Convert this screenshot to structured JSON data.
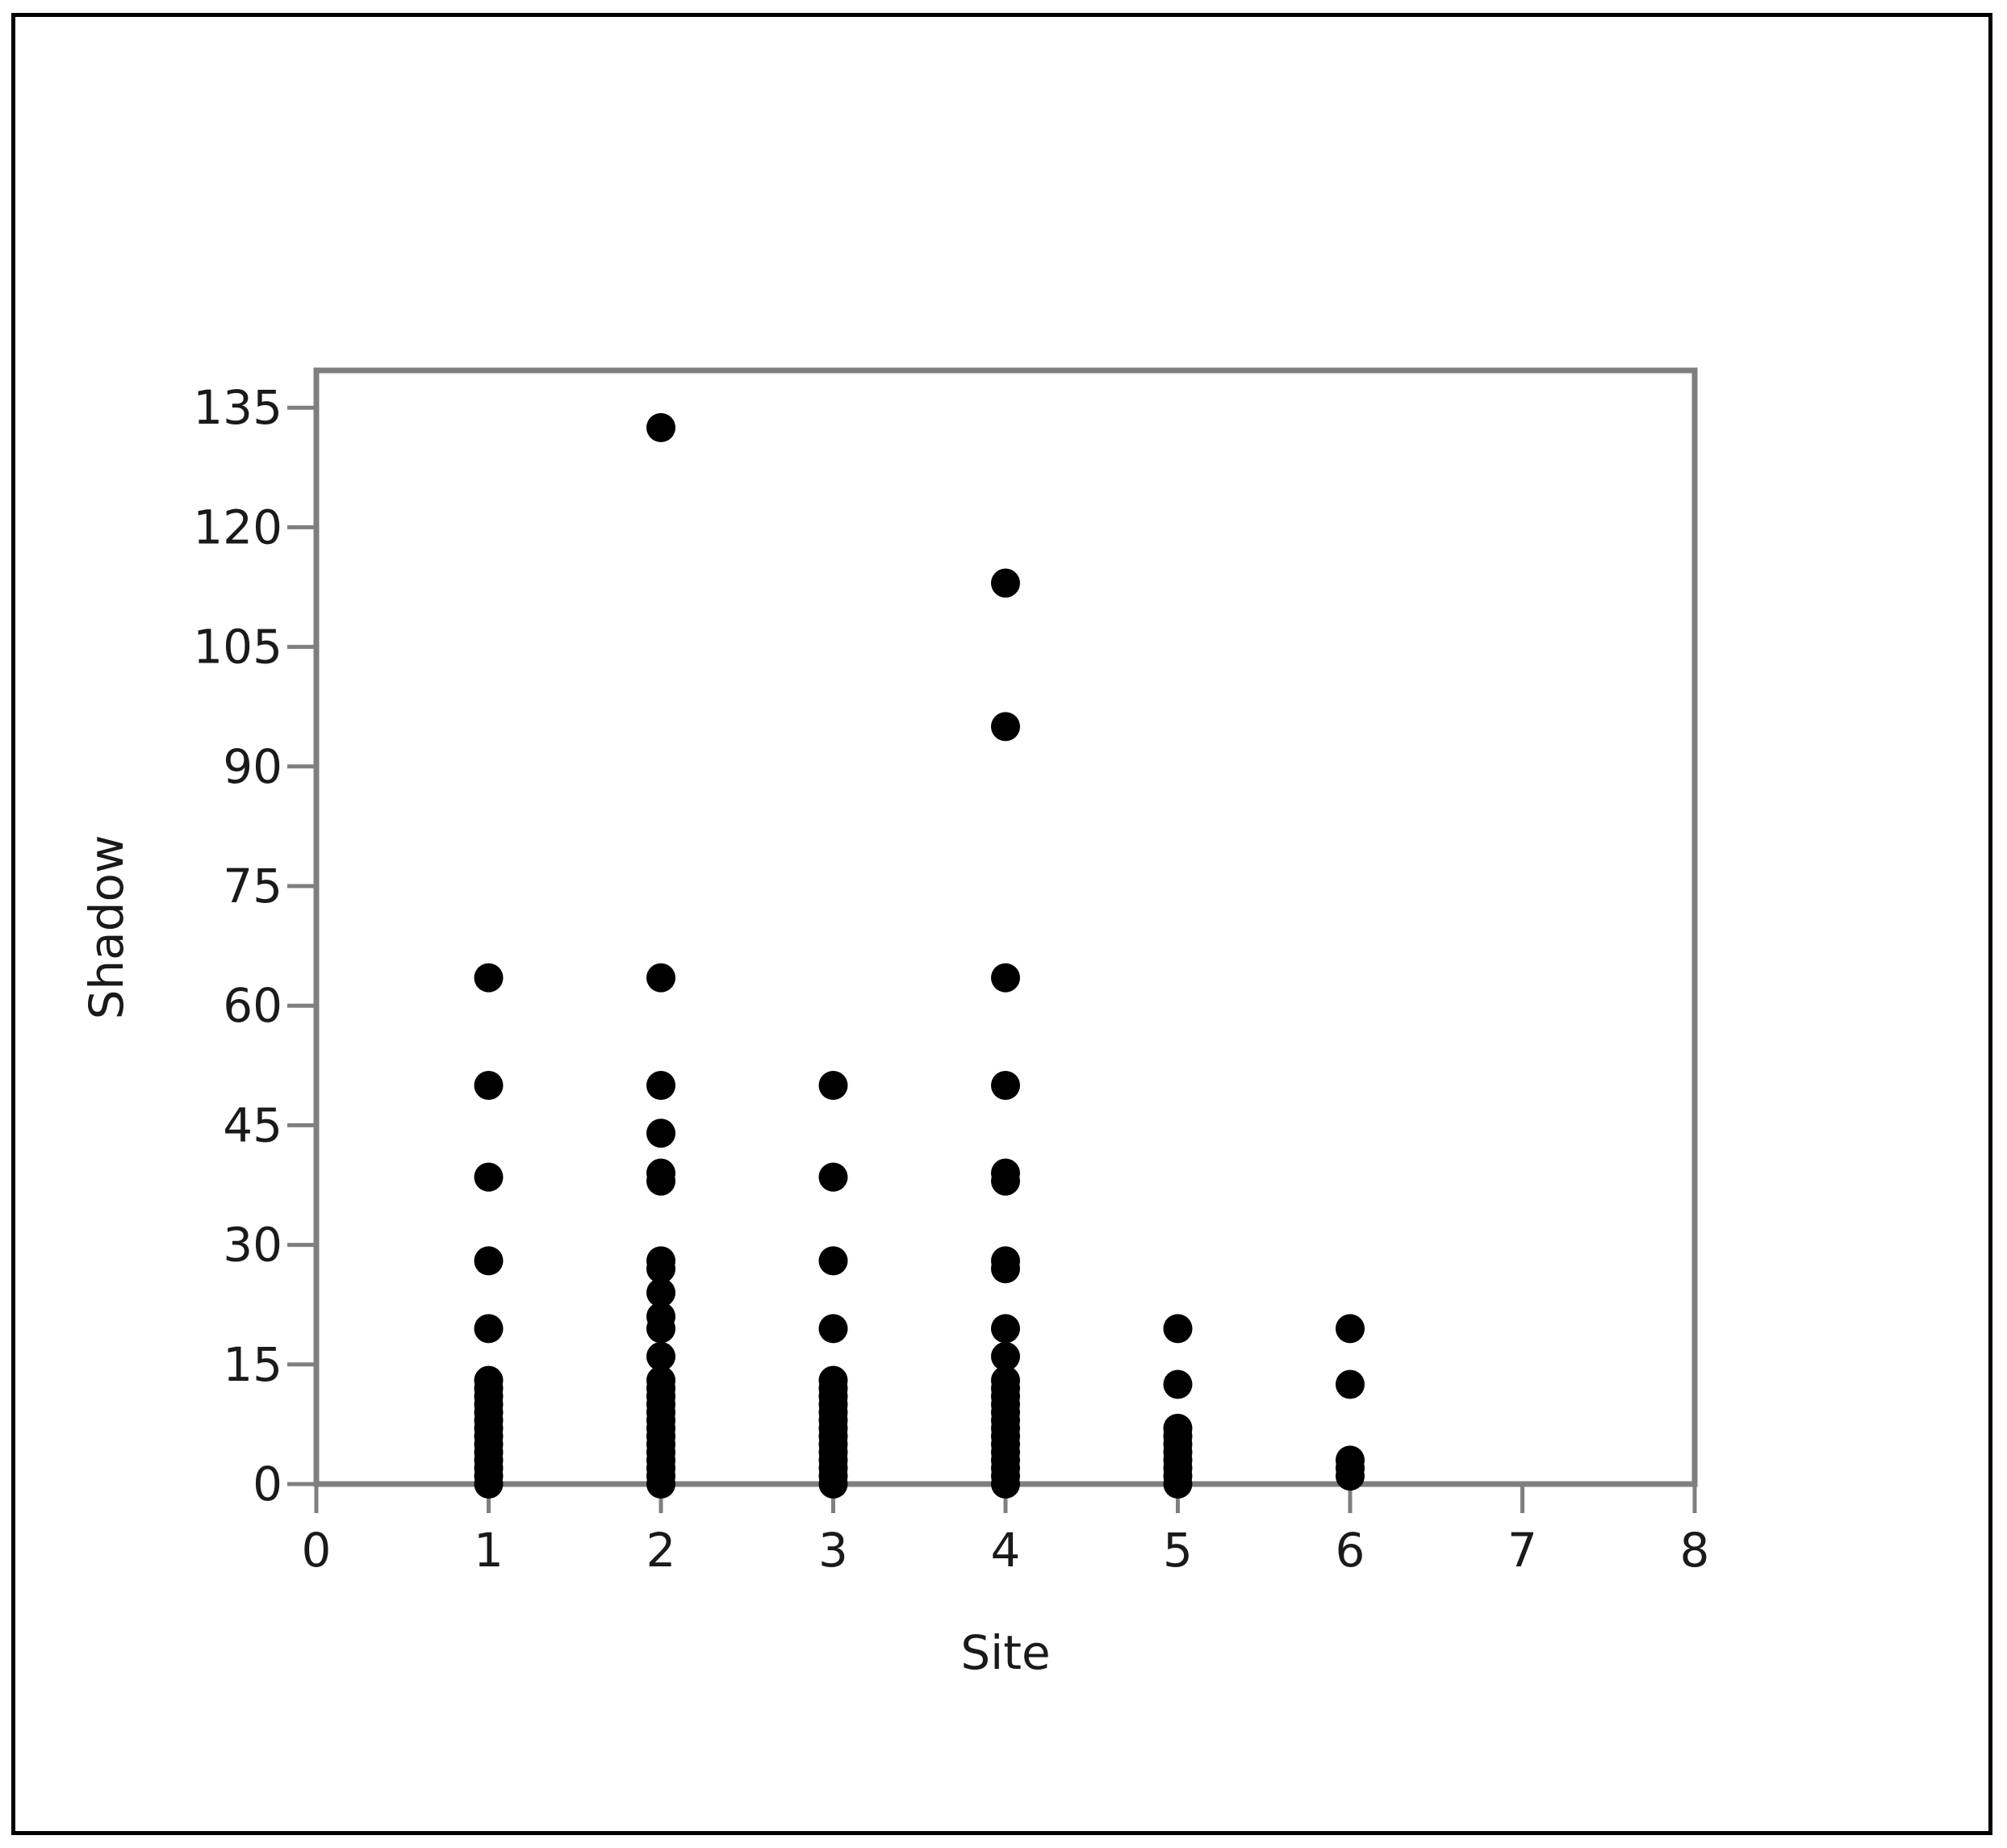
{
  "chart_data": {
    "type": "scatter",
    "title": "",
    "xlabel": "Site",
    "ylabel": "Shadow",
    "xlim": [
      0,
      8
    ],
    "ylim": [
      0,
      140
    ],
    "x_ticks": [
      0,
      1,
      2,
      3,
      4,
      5,
      6,
      7,
      8
    ],
    "y_ticks": [
      0,
      15,
      30,
      45,
      60,
      75,
      90,
      105,
      120,
      135
    ],
    "grid": false,
    "legend": "none",
    "marker_color": "#000000",
    "axis_color": "#7f7f7f",
    "series": [
      {
        "points": [
          [
            1,
            0
          ],
          [
            1,
            1
          ],
          [
            1,
            2
          ],
          [
            1,
            3
          ],
          [
            1,
            4
          ],
          [
            1,
            5
          ],
          [
            1,
            6
          ],
          [
            1,
            7
          ],
          [
            1,
            8
          ],
          [
            1,
            9
          ],
          [
            1,
            10
          ],
          [
            1,
            11
          ],
          [
            1,
            12
          ],
          [
            1,
            13
          ],
          [
            1,
            19.5
          ],
          [
            1,
            28
          ],
          [
            1,
            38.5
          ],
          [
            1,
            50
          ],
          [
            1,
            63.5
          ],
          [
            2,
            0
          ],
          [
            2,
            1
          ],
          [
            2,
            2
          ],
          [
            2,
            3
          ],
          [
            2,
            4
          ],
          [
            2,
            5
          ],
          [
            2,
            6
          ],
          [
            2,
            7
          ],
          [
            2,
            8
          ],
          [
            2,
            9
          ],
          [
            2,
            10
          ],
          [
            2,
            11
          ],
          [
            2,
            12
          ],
          [
            2,
            13
          ],
          [
            2,
            16
          ],
          [
            2,
            19.5
          ],
          [
            2,
            21
          ],
          [
            2,
            24
          ],
          [
            2,
            27
          ],
          [
            2,
            28
          ],
          [
            2,
            38
          ],
          [
            2,
            39
          ],
          [
            2,
            44
          ],
          [
            2,
            50
          ],
          [
            2,
            63.5
          ],
          [
            2,
            132.5
          ],
          [
            3,
            0
          ],
          [
            3,
            1
          ],
          [
            3,
            2
          ],
          [
            3,
            3
          ],
          [
            3,
            4
          ],
          [
            3,
            5
          ],
          [
            3,
            6
          ],
          [
            3,
            7
          ],
          [
            3,
            8
          ],
          [
            3,
            9
          ],
          [
            3,
            10
          ],
          [
            3,
            11
          ],
          [
            3,
            12
          ],
          [
            3,
            13
          ],
          [
            3,
            19.5
          ],
          [
            3,
            28
          ],
          [
            3,
            38.5
          ],
          [
            3,
            50
          ],
          [
            4,
            0
          ],
          [
            4,
            1
          ],
          [
            4,
            2
          ],
          [
            4,
            3
          ],
          [
            4,
            4
          ],
          [
            4,
            5
          ],
          [
            4,
            6
          ],
          [
            4,
            7
          ],
          [
            4,
            8
          ],
          [
            4,
            9
          ],
          [
            4,
            10
          ],
          [
            4,
            11
          ],
          [
            4,
            12
          ],
          [
            4,
            13
          ],
          [
            4,
            16
          ],
          [
            4,
            19.5
          ],
          [
            4,
            27
          ],
          [
            4,
            28
          ],
          [
            4,
            38
          ],
          [
            4,
            39
          ],
          [
            4,
            50
          ],
          [
            4,
            63.5
          ],
          [
            4,
            95
          ],
          [
            4,
            113
          ],
          [
            5,
            0
          ],
          [
            5,
            1
          ],
          [
            5,
            2
          ],
          [
            5,
            3
          ],
          [
            5,
            4
          ],
          [
            5,
            5
          ],
          [
            5,
            6
          ],
          [
            5,
            7
          ],
          [
            5,
            12.5
          ],
          [
            5,
            19.5
          ],
          [
            6,
            1
          ],
          [
            6,
            2
          ],
          [
            6,
            3
          ],
          [
            6,
            12.5
          ],
          [
            6,
            19.5
          ]
        ]
      }
    ]
  }
}
